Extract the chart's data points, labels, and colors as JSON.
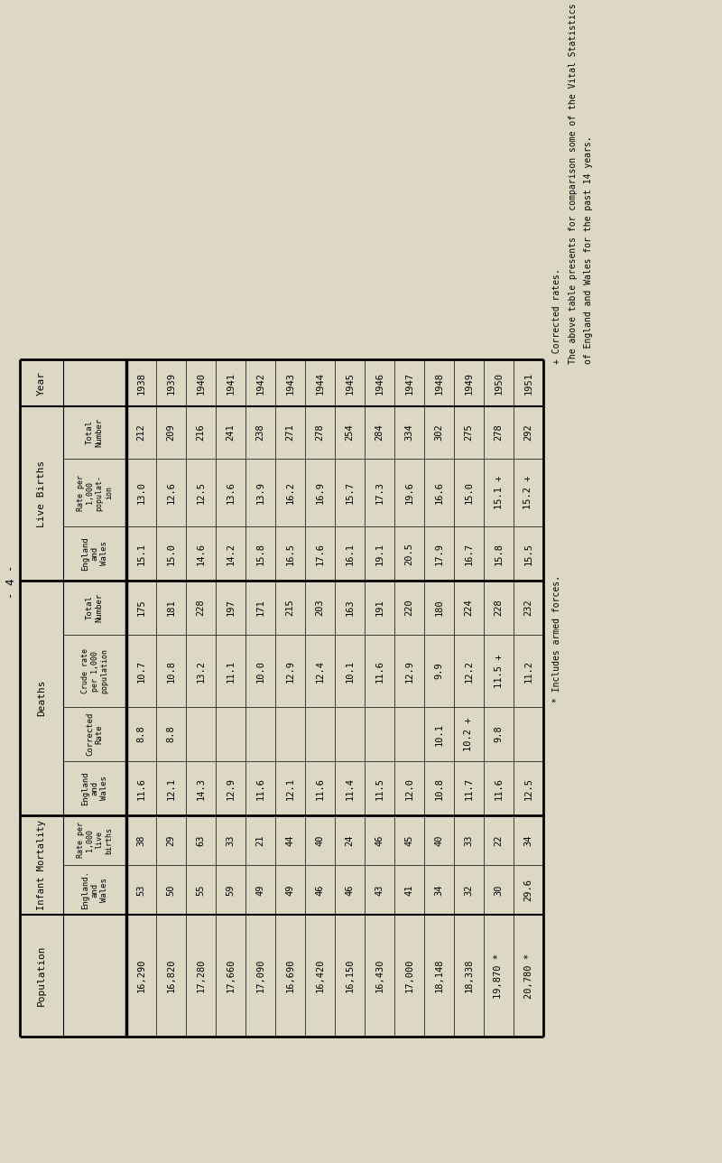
{
  "title": "- 4 -",
  "background_color": "#ddd8c4",
  "years": [
    "1938",
    "1939",
    "1940",
    "1941",
    "1942",
    "1943",
    "1944",
    "1945",
    "1946",
    "1947",
    "1948",
    "1949",
    "1950",
    "1951"
  ],
  "live_births": {
    "total_number": [
      "212",
      "209",
      "216",
      "241",
      "238",
      "271",
      "278",
      "254",
      "284",
      "334",
      "302",
      "275",
      "278",
      "292"
    ],
    "rate_per_1000": [
      "13.0",
      "12.6",
      "12.5",
      "13.6",
      "13.9",
      "16.2",
      "16.9",
      "15.7",
      "17.3",
      "19.6",
      "16.6",
      "15.0",
      "15.1 +",
      "15.2 +"
    ],
    "england_wales": [
      "15.1",
      "15.0",
      "14.6",
      "14.2",
      "15.8",
      "16.5",
      "17.6",
      "16.1",
      "19.1",
      "20.5",
      "17.9",
      "16.7",
      "15.8",
      "15.5"
    ]
  },
  "deaths": {
    "total_number": [
      "175",
      "181",
      "228",
      "197",
      "171",
      "215",
      "203",
      "163",
      "191",
      "220",
      "180",
      "224",
      "228",
      "232"
    ],
    "crude_rate": [
      "10.7",
      "10.8",
      "13.2",
      "11.1",
      "10.0",
      "12.9",
      "12.4",
      "10.1",
      "11.6",
      "12.9",
      "9.9",
      "12.2",
      "11.5 +",
      "11.2"
    ],
    "corrected_rate": [
      "8.8",
      "8.8",
      "",
      "",
      "",
      "",
      "",
      "",
      "",
      "",
      "10.1",
      "10.2 +",
      "9.8",
      ""
    ],
    "england_wales": [
      "11.6",
      "12.1",
      "14.3",
      "12.9",
      "11.6",
      "12.1",
      "11.6",
      "11.4",
      "11.5",
      "12.0",
      "10.8",
      "11.7",
      "11.6",
      "12.5"
    ]
  },
  "infant_mortality": {
    "rate_per_1000_live": [
      "38",
      "29",
      "63",
      "33",
      "21",
      "44",
      "40",
      "24",
      "46",
      "45",
      "40",
      "33",
      "22",
      "34"
    ],
    "england_wales": [
      "53",
      "50",
      "55",
      "59",
      "49",
      "49",
      "46",
      "46",
      "43",
      "41",
      "34",
      "32",
      "30",
      "29.6"
    ]
  },
  "population": [
    "16,290",
    "16,820",
    "17,280",
    "17,660",
    "17,090",
    "16,690",
    "16,420",
    "16,150",
    "16,430",
    "17,000",
    "18,148",
    "18,338",
    "19,870 *",
    "20,780 *"
  ],
  "footnote1": "+ Corrected rates.",
  "footnote2": "* Includes armed forces.",
  "footnote3": "The above table presents for comparison some of the Vital Statistics of the District and",
  "footnote4": "of England and Wales for the past 14 years."
}
